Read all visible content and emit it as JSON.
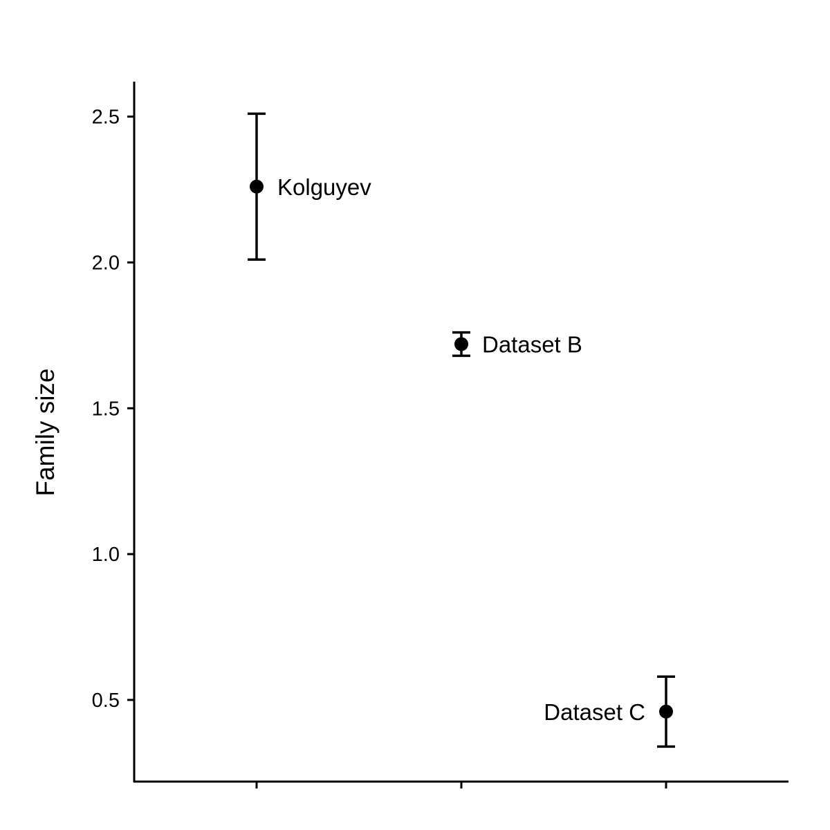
{
  "chart_data": {
    "type": "scatter",
    "title": "",
    "xlabel": "",
    "ylabel": "Family size",
    "ylim": [
      0.22,
      2.62
    ],
    "yticks": [
      0.5,
      1.0,
      1.5,
      2.0,
      2.5
    ],
    "ytick_labels": [
      "0.5",
      "1.0",
      "1.5",
      "2.0",
      "2.5"
    ],
    "grid": false,
    "legend": "none",
    "points": [
      {
        "label": "Kolguyev",
        "x_index": 1,
        "y": 2.26,
        "ymin": 2.01,
        "ymax": 2.51,
        "label_side": "right"
      },
      {
        "label": "Dataset B",
        "x_index": 2,
        "y": 1.72,
        "ymin": 1.68,
        "ymax": 1.76,
        "label_side": "right"
      },
      {
        "label": "Dataset C",
        "x_index": 3,
        "y": 0.46,
        "ymin": 0.34,
        "ymax": 0.58,
        "label_side": "left"
      }
    ],
    "colors": {
      "points": "#000000",
      "axes": "#000000",
      "background": "#ffffff"
    }
  }
}
